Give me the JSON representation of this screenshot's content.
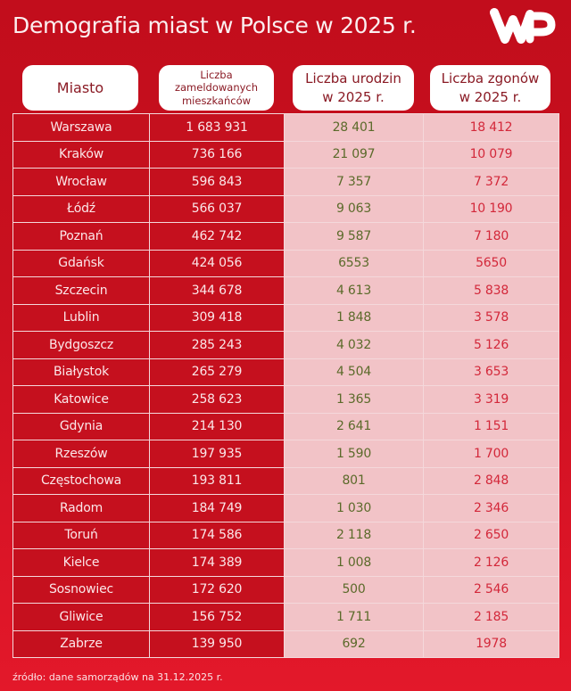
{
  "header": {
    "title": "Demografia miast w Polsce w 2025 r.",
    "logo_text": "WP",
    "logo_icon": "wp-logo-icon"
  },
  "columns": {
    "city": "Miasto",
    "population": [
      "Liczba",
      "zameldowanych",
      "mieszkańców"
    ],
    "births": [
      "Liczba urodzin",
      "w 2025 r."
    ],
    "deaths": [
      "Liczba zgonów",
      "w 2025 r."
    ]
  },
  "rows": [
    {
      "city": "Warszawa",
      "population": "1 683 931",
      "births": "28 401",
      "deaths": "18 412"
    },
    {
      "city": "Kraków",
      "population": "736 166",
      "births": "21 097",
      "deaths": "10 079"
    },
    {
      "city": "Wrocław",
      "population": "596 843",
      "births": "7 357",
      "deaths": "7 372"
    },
    {
      "city": "Łódź",
      "population": "566 037",
      "births": "9 063",
      "deaths": "10 190"
    },
    {
      "city": "Poznań",
      "population": "462 742",
      "births": "9 587",
      "deaths": "7 180"
    },
    {
      "city": "Gdańsk",
      "population": "424 056",
      "births": "6553",
      "deaths": "5650"
    },
    {
      "city": "Szczecin",
      "population": "344 678",
      "births": "4 613",
      "deaths": "5 838"
    },
    {
      "city": "Lublin",
      "population": "309 418",
      "births": "1 848",
      "deaths": "3 578"
    },
    {
      "city": "Bydgoszcz",
      "population": "285 243",
      "births": "4 032",
      "deaths": "5 126"
    },
    {
      "city": "Białystok",
      "population": "265 279",
      "births": "4 504",
      "deaths": "3 653"
    },
    {
      "city": "Katowice",
      "population": "258 623",
      "births": "1 365",
      "deaths": "3 319"
    },
    {
      "city": "Gdynia",
      "population": "214 130",
      "births": "2 641",
      "deaths": "1 151"
    },
    {
      "city": "Rzeszów",
      "population": "197 935",
      "births": "1 590",
      "deaths": "1 700"
    },
    {
      "city": "Częstochowa",
      "population": "193 811",
      "births": "801",
      "deaths": "2 848"
    },
    {
      "city": "Radom",
      "population": "184 749",
      "births": "1 030",
      "deaths": "2 346"
    },
    {
      "city": "Toruń",
      "population": "174 586",
      "births": "2 118",
      "deaths": "2 650"
    },
    {
      "city": "Kielce",
      "population": "174 389",
      "births": "1 008",
      "deaths": "2 126"
    },
    {
      "city": "Sosnowiec",
      "population": "172 620",
      "births": "500",
      "deaths": "2 546"
    },
    {
      "city": "Gliwice",
      "population": "156 752",
      "births": "1 711",
      "deaths": "2 185"
    },
    {
      "city": "Zabrze",
      "population": "139 950",
      "births": "692",
      "deaths": "1978"
    }
  ],
  "footer": {
    "source": "źródło: dane samorządów na 31.12.2025 r."
  },
  "colors": {
    "background_top": "#c20d1c",
    "background_bottom": "#e3182a",
    "dark_cell": "#c5101e",
    "light_cell": "#f2c3c7",
    "births_text": "#5b6a2a",
    "deaths_text": "#d3283a",
    "header_text": "#8a1a24"
  },
  "chart_data": {
    "type": "table",
    "title": "Demografia miast w Polsce w 2025 r.",
    "columns": [
      "Miasto",
      "Liczba zameldowanych mieszkańców",
      "Liczba urodzin w 2025 r.",
      "Liczba zgonów w 2025 r."
    ],
    "categories": [
      "Warszawa",
      "Kraków",
      "Wrocław",
      "Łódź",
      "Poznań",
      "Gdańsk",
      "Szczecin",
      "Lublin",
      "Bydgoszcz",
      "Białystok",
      "Katowice",
      "Gdynia",
      "Rzeszów",
      "Częstochowa",
      "Radom",
      "Toruń",
      "Kielce",
      "Sosnowiec",
      "Gliwice",
      "Zabrze"
    ],
    "series": [
      {
        "name": "Liczba zameldowanych mieszkańców",
        "values": [
          1683931,
          736166,
          596843,
          566037,
          462742,
          424056,
          344678,
          309418,
          285243,
          265279,
          258623,
          214130,
          197935,
          193811,
          184749,
          174586,
          174389,
          172620,
          156752,
          139950
        ]
      },
      {
        "name": "Liczba urodzin w 2025 r.",
        "values": [
          28401,
          21097,
          7357,
          9063,
          9587,
          6553,
          4613,
          1848,
          4032,
          4504,
          1365,
          2641,
          1590,
          801,
          1030,
          2118,
          1008,
          500,
          1711,
          692
        ]
      },
      {
        "name": "Liczba zgonów w 2025 r.",
        "values": [
          18412,
          10079,
          7372,
          10190,
          7180,
          5650,
          5838,
          3578,
          5126,
          3653,
          3319,
          1151,
          1700,
          2848,
          2346,
          2650,
          2126,
          2546,
          2185,
          1978
        ]
      }
    ],
    "annotations": [
      "źródło: dane samorządów na 31.12.2025 r."
    ]
  }
}
